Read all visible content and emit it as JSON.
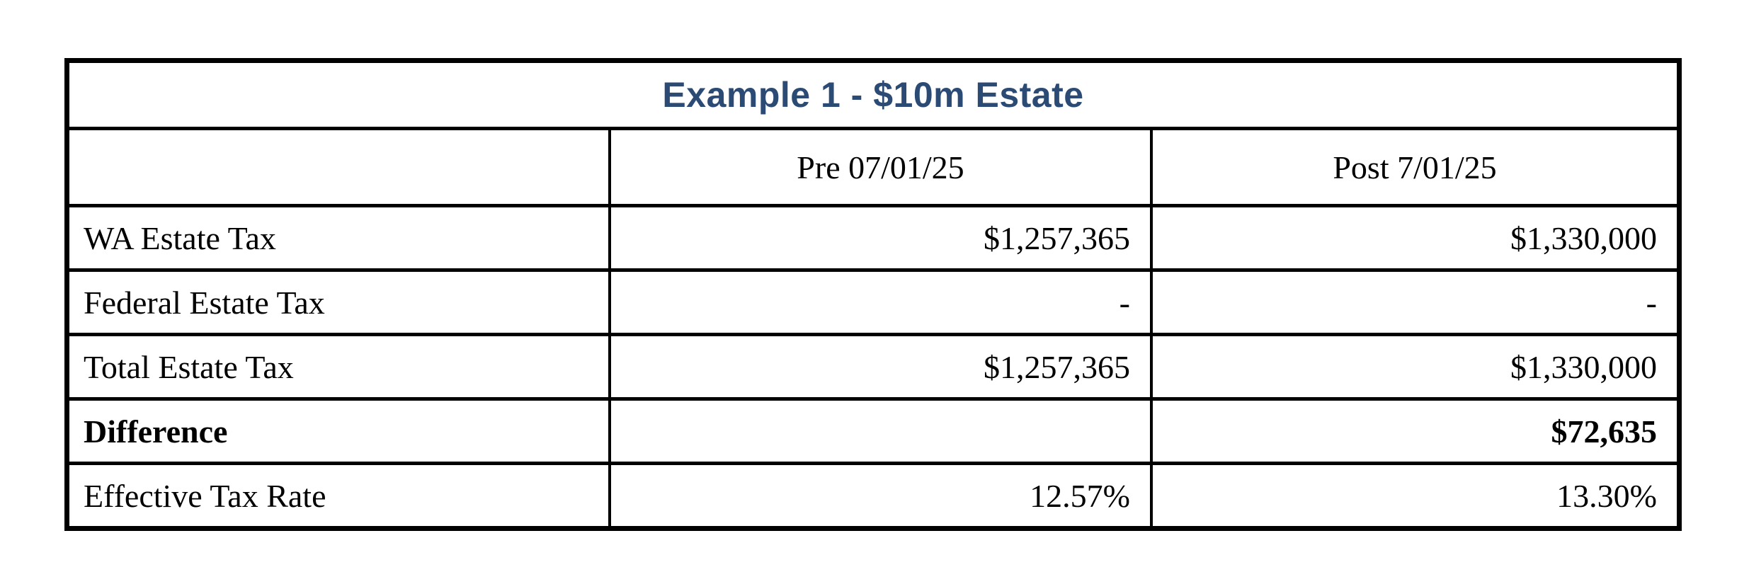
{
  "title": "Example 1 - $10m Estate",
  "colors": {
    "title_text": "#2b4a74",
    "border": "#000000",
    "background": "#ffffff"
  },
  "table": {
    "columns": [
      "",
      "Pre 07/01/25",
      "Post 7/01/25"
    ],
    "rows": [
      {
        "label": "WA Estate Tax",
        "pre": "$1,257,365",
        "post": "$1,330,000"
      },
      {
        "label": "Federal Estate Tax",
        "pre": "-",
        "post": "-"
      },
      {
        "label": "Total Estate Tax",
        "pre": "$1,257,365",
        "post": "$1,330,000"
      },
      {
        "label": "Difference",
        "pre": "",
        "post": "$72,635"
      },
      {
        "label": "Effective Tax Rate",
        "pre": "12.57%",
        "post": "13.30%"
      }
    ]
  }
}
